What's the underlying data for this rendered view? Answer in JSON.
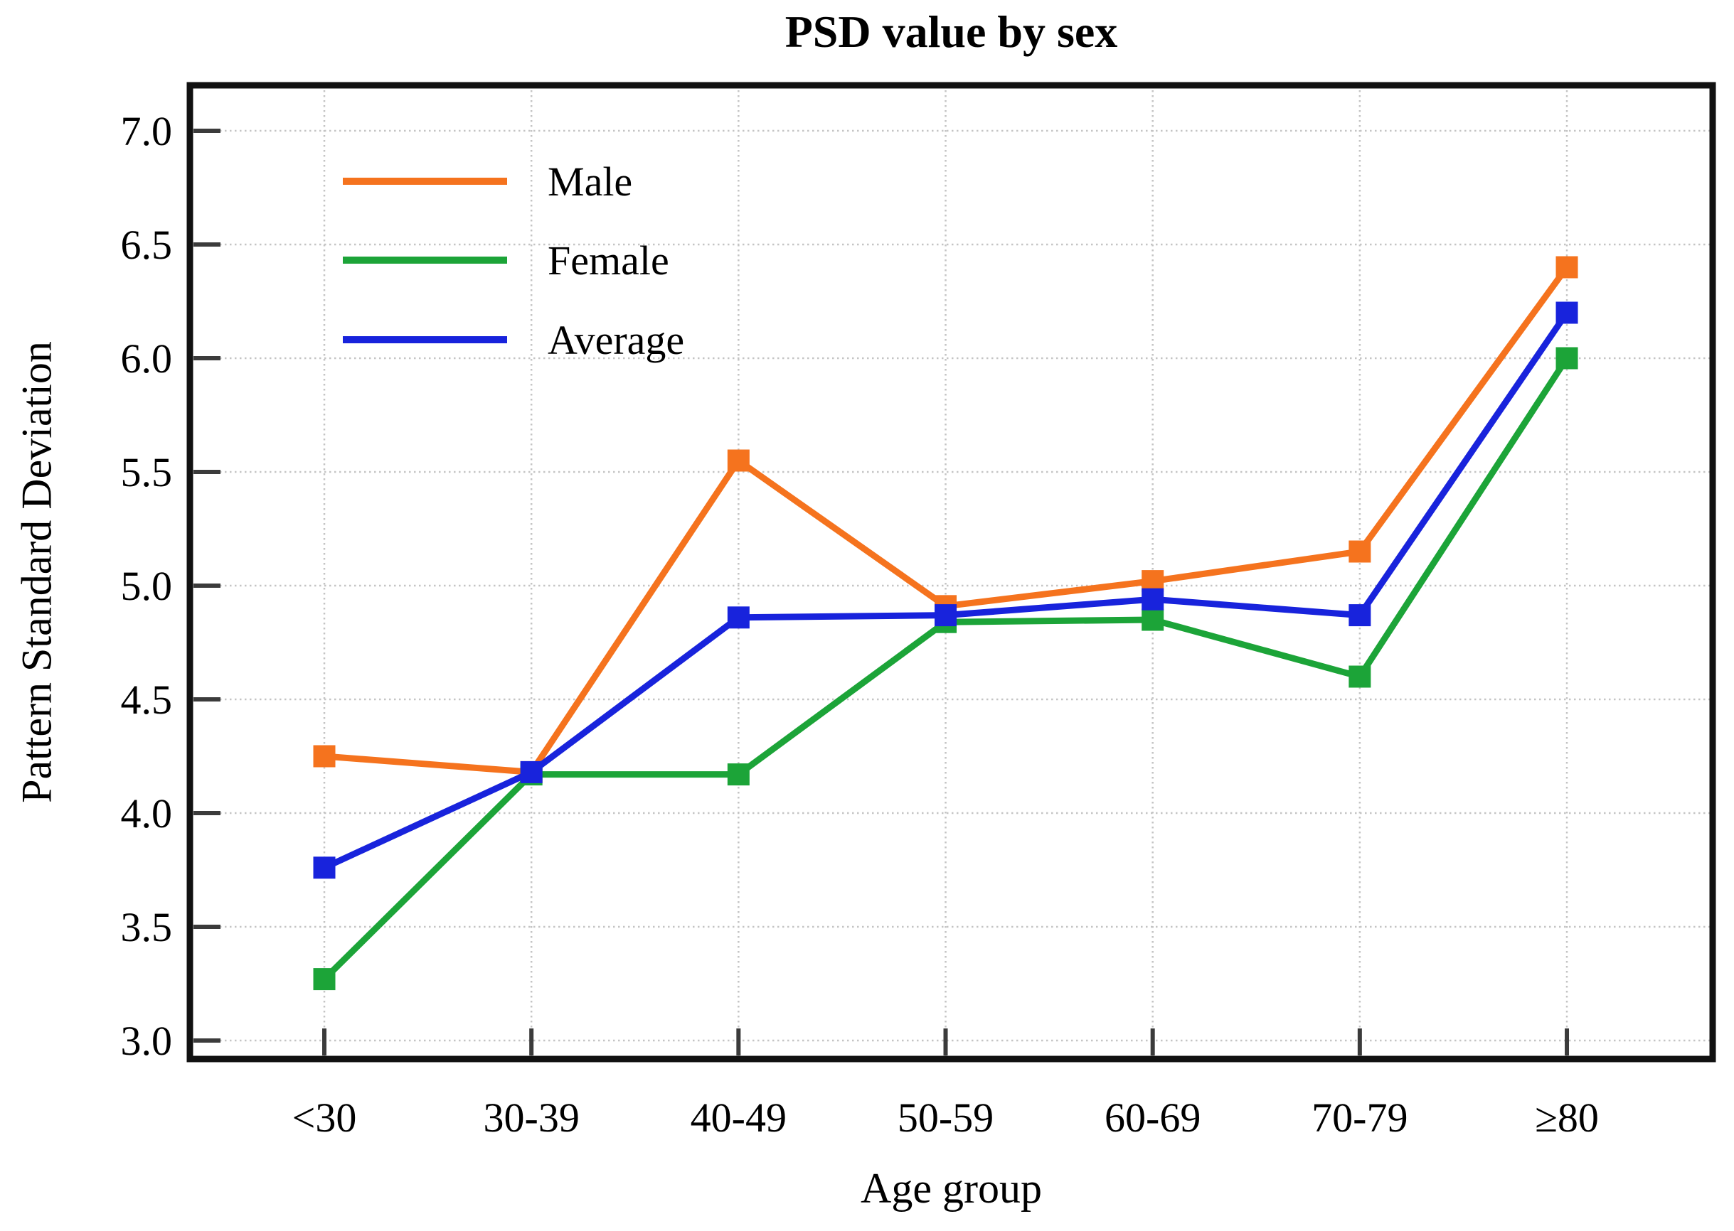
{
  "figure": {
    "title": "PSD value by sex",
    "x_axis_label": "Age group",
    "y_axis_label": "Pattern Standard Deviation"
  },
  "legend": {
    "position": "upper left",
    "items": [
      "Male",
      "Female",
      "Average"
    ]
  },
  "chart_data": {
    "type": "line",
    "title": "PSD value by sex",
    "xlabel": "Age group",
    "ylabel": "Pattern Standard Deviation",
    "categories": [
      "<30",
      "30-39",
      "40-49",
      "50-59",
      "60-69",
      "70-79",
      "≥80"
    ],
    "series": [
      {
        "name": "Male",
        "color": "#F5731E",
        "values": [
          4.25,
          4.18,
          5.55,
          4.91,
          5.02,
          5.15,
          6.4
        ]
      },
      {
        "name": "Female",
        "color": "#1CA438",
        "values": [
          3.27,
          4.17,
          4.17,
          4.84,
          4.85,
          4.6,
          6.0
        ]
      },
      {
        "name": "Average",
        "color": "#1823DC",
        "values": [
          3.76,
          4.18,
          4.86,
          4.87,
          4.94,
          4.87,
          6.2
        ]
      }
    ],
    "yticks": [
      3.0,
      3.5,
      4.0,
      4.5,
      5.0,
      5.5,
      6.0,
      6.5,
      7.0
    ],
    "ytick_labels": [
      "3.0",
      "3.5",
      "4.0",
      "4.5",
      "5.0",
      "5.5",
      "6.0",
      "6.5",
      "7.0"
    ],
    "ylim": [
      2.9,
      7.2
    ],
    "grid": true,
    "grid_color": "#c4c4c4",
    "axis_color": "#111111",
    "tick_color": "#3b3b3b",
    "tick_direction": "in",
    "marker": "square",
    "legend_position": "upper left"
  }
}
